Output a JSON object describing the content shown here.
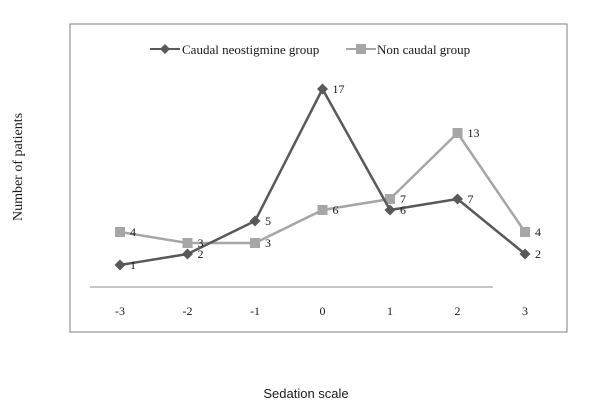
{
  "colors": {
    "series_1": "#595959",
    "series_2": "#a6a6a6",
    "axis": "#8c8c8c",
    "frame": "#7f7f7f",
    "text": "#1a1a1a"
  },
  "chart_data": {
    "type": "line",
    "title": "",
    "xlabel": "Sedation scale",
    "ylabel": "Number of patients",
    "x": [
      -3,
      -2,
      -1,
      0,
      1,
      2,
      3
    ],
    "x_tick_labels": [
      "-3",
      "-2",
      "-1",
      "0",
      "1",
      "2",
      "3"
    ],
    "ylim": [
      0,
      17
    ],
    "grid": false,
    "legend_position": "top",
    "series": [
      {
        "name": "Caudal neostigmine group",
        "marker": "diamond",
        "values": [
          1,
          2,
          5,
          17,
          6,
          7,
          2
        ],
        "data_labels": [
          "1",
          "2",
          "5",
          "17",
          "6",
          "7",
          "2"
        ]
      },
      {
        "name": "Non caudal group",
        "marker": "square",
        "values": [
          4,
          3,
          3,
          6,
          7,
          13,
          4
        ],
        "data_labels": [
          "4",
          "3",
          "3",
          "6",
          "7",
          "13",
          "4"
        ]
      }
    ]
  }
}
